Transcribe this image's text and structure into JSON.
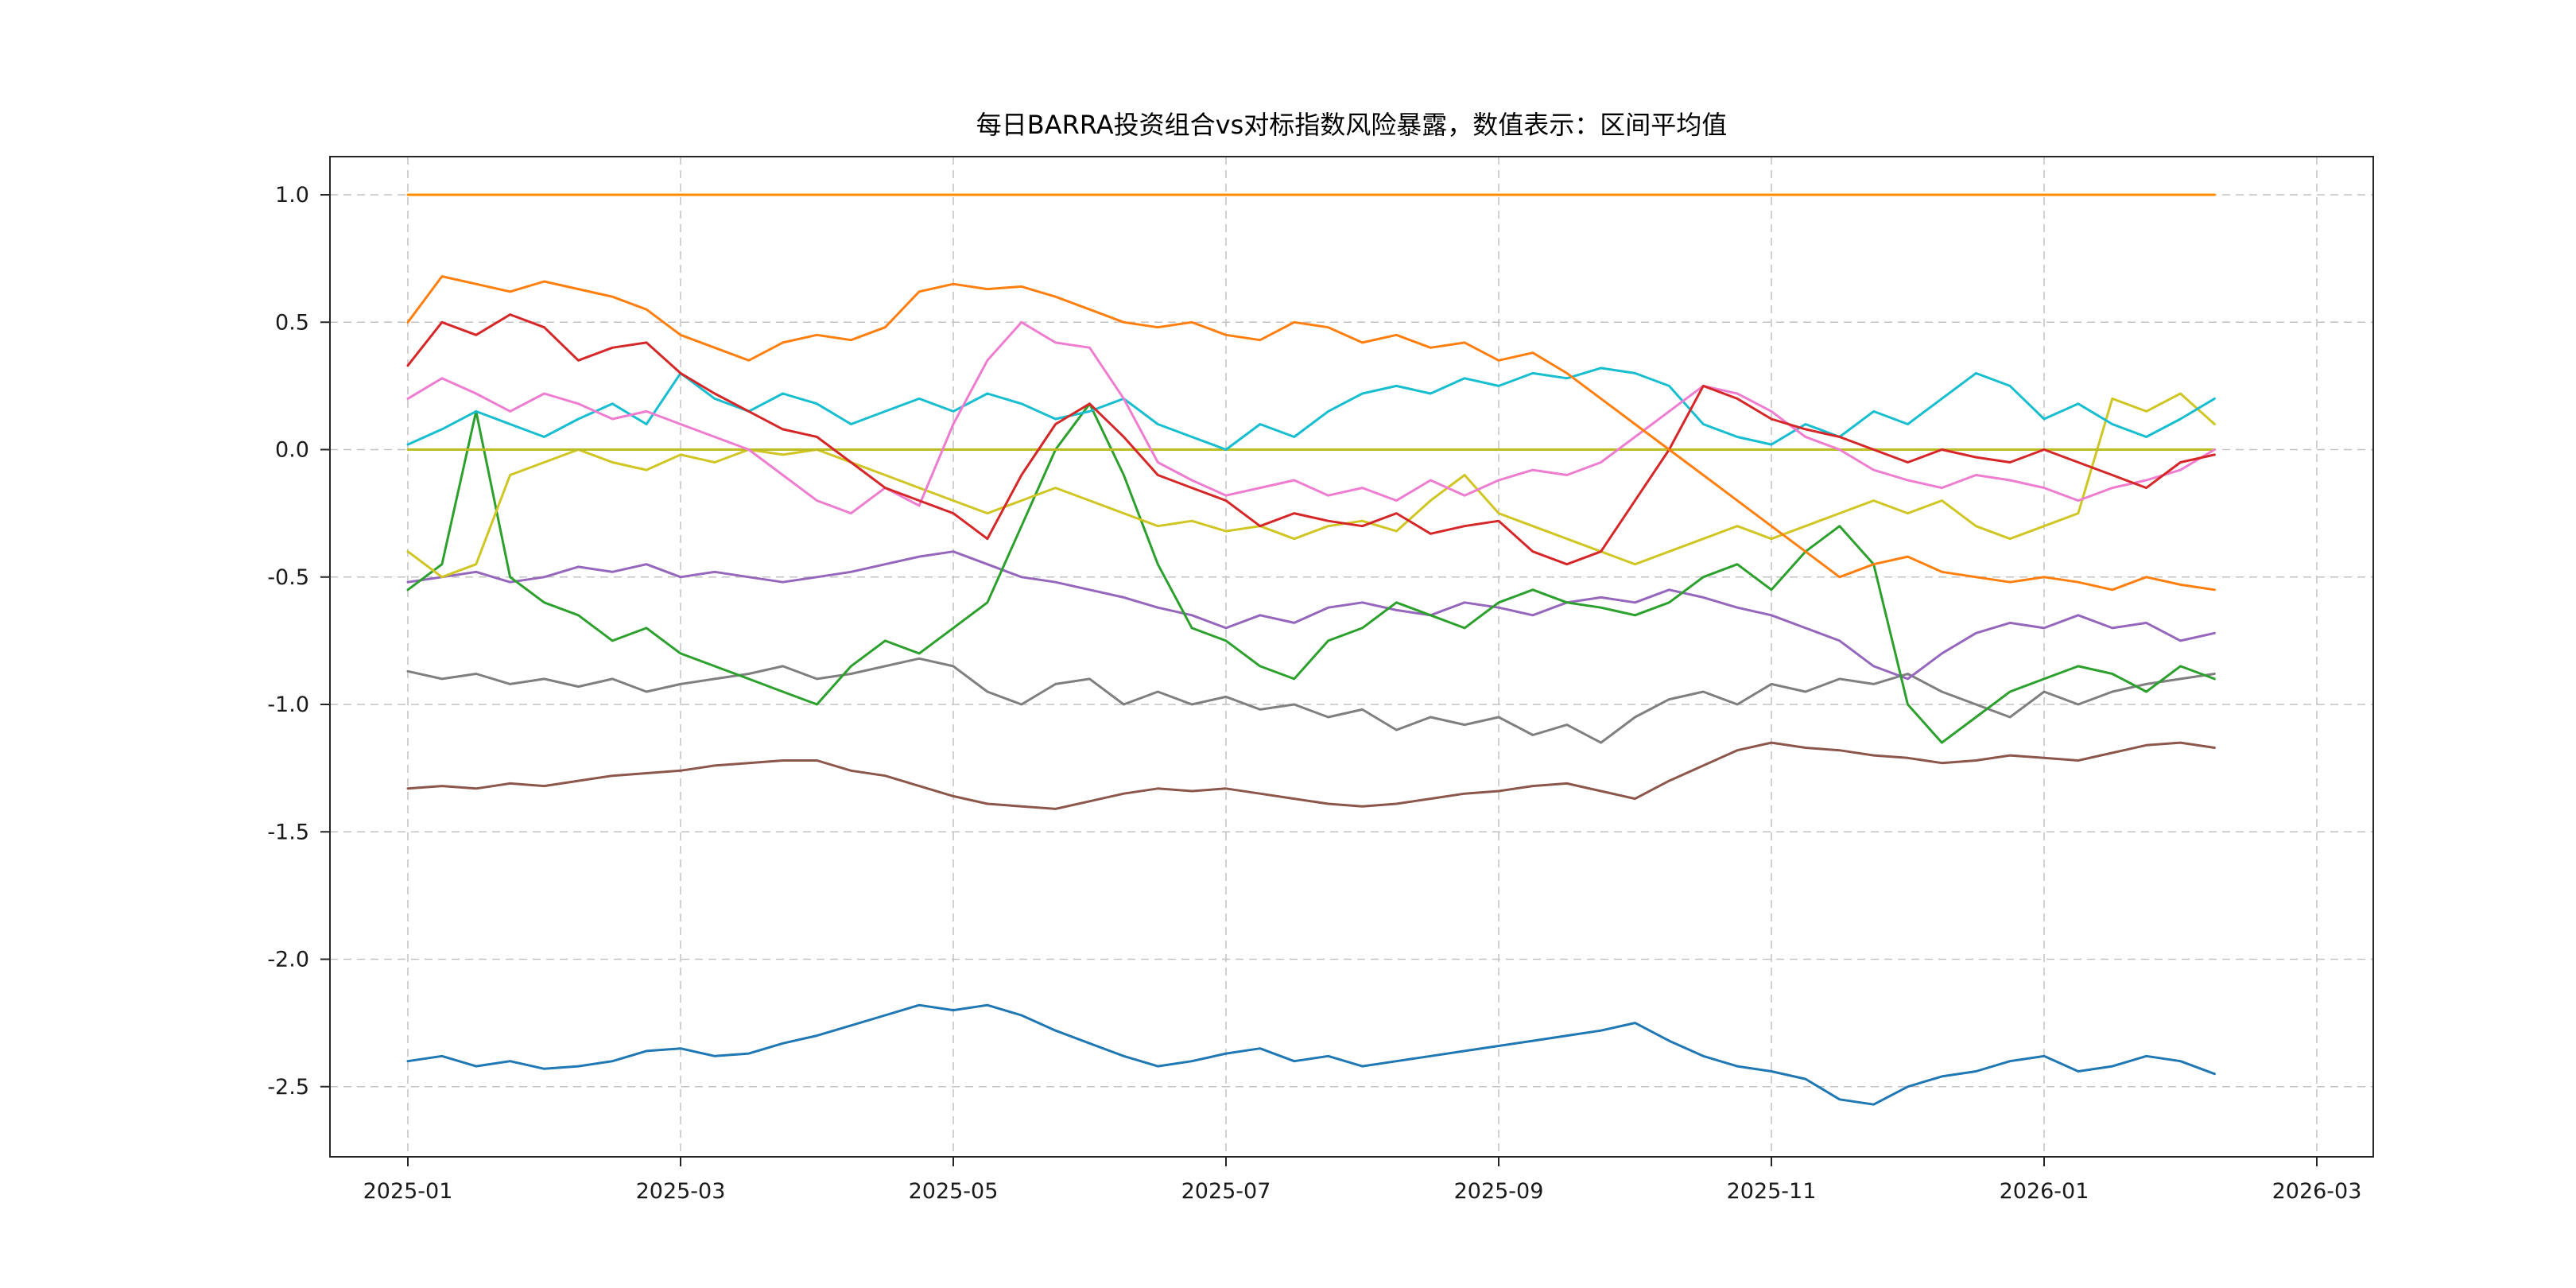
{
  "page": {
    "background": "#ffffff"
  },
  "chart_data": {
    "type": "line",
    "title": "每日BARRA投资组合vs对标指数风险暴露，数值表示：区间平均值",
    "legend": "none",
    "grid": "dashed",
    "x_tick_labels": [
      "2025-01",
      "2025-03",
      "2025-05",
      "2025-07",
      "2025-09",
      "2025-11",
      "2026-01",
      "2026-03"
    ],
    "x_tick_months": [
      0,
      2,
      4,
      6,
      8,
      10,
      12,
      14
    ],
    "y_ticks": [
      1.0,
      0.5,
      0.0,
      -0.5,
      -1.0,
      -1.5,
      -2.0,
      -2.5
    ],
    "ylim": [
      -2.78,
      1.15
    ],
    "xlim_months": [
      -0.57,
      14.4
    ],
    "x_start_month": 0,
    "x_step_months": 0.25,
    "series": [
      {
        "name": "gray",
        "color": "#7f7f7f",
        "values": [
          -0.87,
          -0.9,
          -0.88,
          -0.92,
          -0.9,
          -0.93,
          -0.9,
          -0.95,
          -0.92,
          -0.9,
          -0.88,
          -0.85,
          -0.9,
          -0.88,
          -0.85,
          -0.82,
          -0.85,
          -0.95,
          -1.0,
          -0.92,
          -0.9,
          -1.0,
          -0.95,
          -1.0,
          -0.97,
          -1.02,
          -1.0,
          -1.05,
          -1.02,
          -1.1,
          -1.05,
          -1.08,
          -1.05,
          -1.12,
          -1.08,
          -1.15,
          -1.05,
          -0.98,
          -0.95,
          -1.0,
          -0.92,
          -0.95,
          -0.9,
          -0.92,
          -0.88,
          -0.95,
          -1.0,
          -1.05,
          -0.95,
          -1.0,
          -0.95,
          -0.92,
          -0.9,
          -0.88
        ]
      },
      {
        "name": "brown",
        "color": "#8c564b",
        "values": [
          -1.33,
          -1.32,
          -1.33,
          -1.31,
          -1.32,
          -1.3,
          -1.28,
          -1.27,
          -1.26,
          -1.24,
          -1.23,
          -1.22,
          -1.22,
          -1.26,
          -1.28,
          -1.32,
          -1.36,
          -1.39,
          -1.4,
          -1.41,
          -1.38,
          -1.35,
          -1.33,
          -1.34,
          -1.33,
          -1.35,
          -1.37,
          -1.39,
          -1.4,
          -1.39,
          -1.37,
          -1.35,
          -1.34,
          -1.32,
          -1.31,
          -1.34,
          -1.37,
          -1.3,
          -1.24,
          -1.18,
          -1.15,
          -1.17,
          -1.18,
          -1.2,
          -1.21,
          -1.23,
          -1.22,
          -1.2,
          -1.21,
          -1.22,
          -1.19,
          -1.16,
          -1.15,
          -1.17
        ]
      },
      {
        "name": "blue",
        "color": "#1f77b4",
        "values": [
          -2.4,
          -2.38,
          -2.42,
          -2.4,
          -2.43,
          -2.42,
          -2.4,
          -2.36,
          -2.35,
          -2.38,
          -2.37,
          -2.33,
          -2.3,
          -2.26,
          -2.22,
          -2.18,
          -2.2,
          -2.18,
          -2.22,
          -2.28,
          -2.33,
          -2.38,
          -2.42,
          -2.4,
          -2.37,
          -2.35,
          -2.4,
          -2.38,
          -2.42,
          -2.4,
          -2.38,
          -2.36,
          -2.34,
          -2.32,
          -2.3,
          -2.28,
          -2.25,
          -2.32,
          -2.38,
          -2.42,
          -2.44,
          -2.47,
          -2.55,
          -2.57,
          -2.5,
          -2.46,
          -2.44,
          -2.4,
          -2.38,
          -2.44,
          -2.42,
          -2.38,
          -2.4,
          -2.45
        ]
      },
      {
        "name": "purple",
        "color": "#9467bd",
        "values": [
          -0.52,
          -0.5,
          -0.48,
          -0.52,
          -0.5,
          -0.46,
          -0.48,
          -0.45,
          -0.5,
          -0.48,
          -0.5,
          -0.52,
          -0.5,
          -0.48,
          -0.45,
          -0.42,
          -0.4,
          -0.45,
          -0.5,
          -0.52,
          -0.55,
          -0.58,
          -0.62,
          -0.65,
          -0.7,
          -0.65,
          -0.68,
          -0.62,
          -0.6,
          -0.63,
          -0.65,
          -0.6,
          -0.62,
          -0.65,
          -0.6,
          -0.58,
          -0.6,
          -0.55,
          -0.58,
          -0.62,
          -0.65,
          -0.7,
          -0.75,
          -0.85,
          -0.9,
          -0.8,
          -0.72,
          -0.68,
          -0.7,
          -0.65,
          -0.7,
          -0.68,
          -0.75,
          -0.72
        ]
      },
      {
        "name": "green",
        "color": "#2ca02c",
        "values": [
          -0.55,
          -0.45,
          0.15,
          -0.5,
          -0.6,
          -0.65,
          -0.75,
          -0.7,
          -0.8,
          -0.85,
          -0.9,
          -0.95,
          -1.0,
          -0.85,
          -0.75,
          -0.8,
          -0.7,
          -0.6,
          -0.3,
          0.0,
          0.18,
          -0.1,
          -0.45,
          -0.7,
          -0.75,
          -0.85,
          -0.9,
          -0.75,
          -0.7,
          -0.6,
          -0.65,
          -0.7,
          -0.6,
          -0.55,
          -0.6,
          -0.62,
          -0.65,
          -0.6,
          -0.5,
          -0.45,
          -0.55,
          -0.4,
          -0.3,
          -0.45,
          -1.0,
          -1.15,
          -1.05,
          -0.95,
          -0.9,
          -0.85,
          -0.88,
          -0.95,
          -0.85,
          -0.9
        ]
      },
      {
        "name": "yellow",
        "color": "#cfc623",
        "values": [
          -0.4,
          -0.5,
          -0.45,
          -0.1,
          -0.05,
          0.0,
          -0.05,
          -0.08,
          -0.02,
          -0.05,
          0.0,
          -0.02,
          0.0,
          -0.05,
          -0.1,
          -0.15,
          -0.2,
          -0.25,
          -0.2,
          -0.15,
          -0.2,
          -0.25,
          -0.3,
          -0.28,
          -0.32,
          -0.3,
          -0.35,
          -0.3,
          -0.28,
          -0.32,
          -0.2,
          -0.1,
          -0.25,
          -0.3,
          -0.35,
          -0.4,
          -0.45,
          -0.4,
          -0.35,
          -0.3,
          -0.35,
          -0.3,
          -0.25,
          -0.2,
          -0.25,
          -0.2,
          -0.3,
          -0.35,
          -0.3,
          -0.25,
          0.2,
          0.15,
          0.22,
          0.1
        ]
      },
      {
        "name": "constant-zero",
        "color": "#bcbd22",
        "values": [
          0.0,
          0.0,
          0.0,
          0.0,
          0.0,
          0.0,
          0.0,
          0.0,
          0.0,
          0.0,
          0.0,
          0.0,
          0.0,
          0.0,
          0.0,
          0.0,
          0.0,
          0.0,
          0.0,
          0.0,
          0.0,
          0.0,
          0.0,
          0.0,
          0.0,
          0.0,
          0.0,
          0.0,
          0.0,
          0.0,
          0.0,
          0.0,
          0.0,
          0.0,
          0.0,
          0.0,
          0.0,
          0.0,
          0.0,
          0.0,
          0.0,
          0.0,
          0.0,
          0.0,
          0.0,
          0.0,
          0.0,
          0.0,
          0.0,
          0.0,
          0.0,
          0.0,
          0.0,
          0.0
        ]
      },
      {
        "name": "cyan",
        "color": "#17becf",
        "values": [
          0.02,
          0.08,
          0.15,
          0.1,
          0.05,
          0.12,
          0.18,
          0.1,
          0.3,
          0.2,
          0.15,
          0.22,
          0.18,
          0.1,
          0.15,
          0.2,
          0.15,
          0.22,
          0.18,
          0.12,
          0.15,
          0.2,
          0.1,
          0.05,
          0.0,
          0.1,
          0.05,
          0.15,
          0.22,
          0.25,
          0.22,
          0.28,
          0.25,
          0.3,
          0.28,
          0.32,
          0.3,
          0.25,
          0.1,
          0.05,
          0.02,
          0.1,
          0.05,
          0.15,
          0.1,
          0.2,
          0.3,
          0.25,
          0.12,
          0.18,
          0.1,
          0.05,
          0.12,
          0.2
        ]
      },
      {
        "name": "pink",
        "color": "#ee7dd0",
        "values": [
          0.2,
          0.28,
          0.22,
          0.15,
          0.22,
          0.18,
          0.12,
          0.15,
          0.1,
          0.05,
          0.0,
          -0.1,
          -0.2,
          -0.25,
          -0.15,
          -0.22,
          0.1,
          0.35,
          0.5,
          0.42,
          0.4,
          0.2,
          -0.05,
          -0.12,
          -0.18,
          -0.15,
          -0.12,
          -0.18,
          -0.15,
          -0.2,
          -0.12,
          -0.18,
          -0.12,
          -0.08,
          -0.1,
          -0.05,
          0.05,
          0.15,
          0.25,
          0.22,
          0.15,
          0.05,
          0.0,
          -0.08,
          -0.12,
          -0.15,
          -0.1,
          -0.12,
          -0.15,
          -0.2,
          -0.15,
          -0.12,
          -0.08,
          0.0
        ]
      },
      {
        "name": "red",
        "color": "#d62728",
        "values": [
          0.33,
          0.5,
          0.45,
          0.53,
          0.48,
          0.35,
          0.4,
          0.42,
          0.3,
          0.22,
          0.15,
          0.08,
          0.05,
          -0.05,
          -0.15,
          -0.2,
          -0.25,
          -0.35,
          -0.1,
          0.1,
          0.18,
          0.05,
          -0.1,
          -0.15,
          -0.2,
          -0.3,
          -0.25,
          -0.28,
          -0.3,
          -0.25,
          -0.33,
          -0.3,
          -0.28,
          -0.4,
          -0.45,
          -0.4,
          -0.2,
          0.0,
          0.25,
          0.2,
          0.12,
          0.08,
          0.05,
          0.0,
          -0.05,
          0.0,
          -0.03,
          -0.05,
          0.0,
          -0.05,
          -0.1,
          -0.15,
          -0.05,
          -0.02
        ]
      },
      {
        "name": "orange",
        "color": "#ff7f0e",
        "values": [
          0.5,
          0.68,
          0.65,
          0.62,
          0.66,
          0.63,
          0.6,
          0.55,
          0.45,
          0.4,
          0.35,
          0.42,
          0.45,
          0.43,
          0.48,
          0.62,
          0.65,
          0.63,
          0.64,
          0.6,
          0.55,
          0.5,
          0.48,
          0.5,
          0.45,
          0.43,
          0.5,
          0.48,
          0.42,
          0.45,
          0.4,
          0.42,
          0.35,
          0.38,
          0.3,
          0.2,
          0.1,
          0.0,
          -0.1,
          -0.2,
          -0.3,
          -0.4,
          -0.5,
          -0.45,
          -0.42,
          -0.48,
          -0.5,
          -0.52,
          -0.5,
          -0.52,
          -0.55,
          -0.5,
          -0.53,
          -0.55
        ]
      },
      {
        "name": "constant-one",
        "color": "#ff8c00",
        "values": [
          1.0,
          1.0,
          1.0,
          1.0,
          1.0,
          1.0,
          1.0,
          1.0,
          1.0,
          1.0,
          1.0,
          1.0,
          1.0,
          1.0,
          1.0,
          1.0,
          1.0,
          1.0,
          1.0,
          1.0,
          1.0,
          1.0,
          1.0,
          1.0,
          1.0,
          1.0,
          1.0,
          1.0,
          1.0,
          1.0,
          1.0,
          1.0,
          1.0,
          1.0,
          1.0,
          1.0,
          1.0,
          1.0,
          1.0,
          1.0,
          1.0,
          1.0,
          1.0,
          1.0,
          1.0,
          1.0,
          1.0,
          1.0,
          1.0,
          1.0,
          1.0,
          1.0,
          1.0,
          1.0
        ]
      }
    ]
  }
}
